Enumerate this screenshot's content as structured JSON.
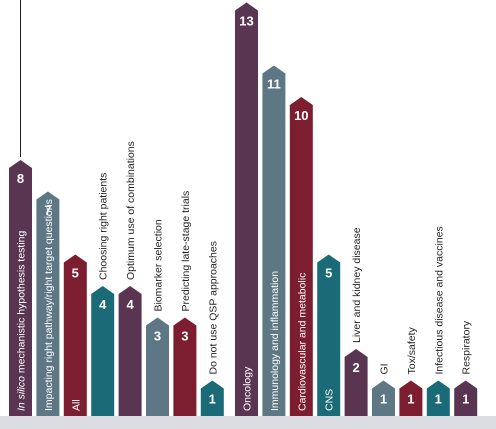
{
  "chart_data": [
    {
      "type": "bar",
      "categories": [
        "In silico mechanistic hypothesis testing",
        "Impacting right pathway/right target questions",
        "All",
        "Choosing right patients",
        "Optimum use of combinations",
        "Biomarker selection",
        "Predicting late-stage trials",
        "Do not use QSP approaches"
      ],
      "values": [
        8,
        7,
        5,
        4,
        4,
        3,
        3,
        1
      ],
      "category_emphasis": {
        "In silico": "italic"
      },
      "colors": [
        "#5a3552",
        "#5e7784",
        "#7d1e30",
        "#1a6b77",
        "#5a3552",
        "#5e7784",
        "#7d1e30",
        "#1a6b77"
      ]
    },
    {
      "type": "bar",
      "categories": [
        "Oncology",
        "Immunology and inflammation",
        "Cardiovascular and metabolic",
        "CNS",
        "Liver and kidney disease",
        "GI",
        "Tox/safety",
        "Infectious disease and vaccines",
        "Respiratory"
      ],
      "values": [
        13,
        11,
        10,
        5,
        2,
        1,
        1,
        1,
        1
      ],
      "colors": [
        "#5a3552",
        "#5e7784",
        "#7d1e30",
        "#1a6b77",
        "#5a3552",
        "#5e7784",
        "#7d1e30",
        "#1a6b77",
        "#5a3552"
      ]
    }
  ],
  "colors": {
    "plum": "#5a3552",
    "slate": "#5e7784",
    "wine": "#7d1e30",
    "teal": "#1a6b77",
    "baseline": "#dcdde3",
    "label_dark": "#231f20"
  }
}
